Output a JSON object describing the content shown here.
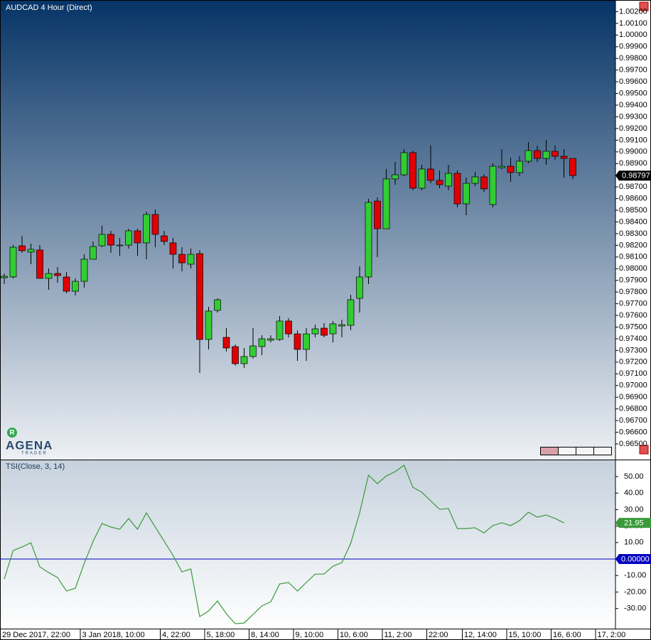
{
  "logo": {
    "badge": "R",
    "name": "AGENA",
    "tagline": "TRADER"
  },
  "chart_data": [
    {
      "type": "candlestick",
      "title": "AUDCAD 4 Hour (Direct)",
      "up_color": "#33cc33",
      "down_color": "#e00000",
      "wick_color": "#000000",
      "ylim": [
        0.96366,
        1.003
      ],
      "yticks": [
        {
          "value": 1.002,
          "label": "1.00200"
        },
        {
          "value": 1.001,
          "label": "1.00100"
        },
        {
          "value": 1.0,
          "label": "1.00000"
        },
        {
          "value": 0.999,
          "label": "0.99900"
        },
        {
          "value": 0.998,
          "label": "0.99800"
        },
        {
          "value": 0.997,
          "label": "0.99700"
        },
        {
          "value": 0.996,
          "label": "0.99600"
        },
        {
          "value": 0.995,
          "label": "0.99500"
        },
        {
          "value": 0.994,
          "label": "0.99400"
        },
        {
          "value": 0.993,
          "label": "0.99300"
        },
        {
          "value": 0.992,
          "label": "0.99200"
        },
        {
          "value": 0.991,
          "label": "0.99100"
        },
        {
          "value": 0.99,
          "label": "0.99000"
        },
        {
          "value": 0.989,
          "label": "0.98900"
        },
        {
          "value": 0.988,
          "label": "0.98800"
        },
        {
          "value": 0.987,
          "label": "0.98700"
        },
        {
          "value": 0.986,
          "label": "0.98600"
        },
        {
          "value": 0.985,
          "label": "0.98500"
        },
        {
          "value": 0.984,
          "label": "0.98400"
        },
        {
          "value": 0.983,
          "label": "0.98300"
        },
        {
          "value": 0.982,
          "label": "0.98200"
        },
        {
          "value": 0.981,
          "label": "0.98100"
        },
        {
          "value": 0.98,
          "label": "0.98000"
        },
        {
          "value": 0.979,
          "label": "0.97900"
        },
        {
          "value": 0.978,
          "label": "0.97800"
        },
        {
          "value": 0.977,
          "label": "0.97700"
        },
        {
          "value": 0.976,
          "label": "0.97600"
        },
        {
          "value": 0.975,
          "label": "0.97500"
        },
        {
          "value": 0.974,
          "label": "0.97400"
        },
        {
          "value": 0.973,
          "label": "0.97300"
        },
        {
          "value": 0.972,
          "label": "0.97200"
        },
        {
          "value": 0.971,
          "label": "0.97100"
        },
        {
          "value": 0.97,
          "label": "0.97000"
        },
        {
          "value": 0.969,
          "label": "0.96900"
        },
        {
          "value": 0.968,
          "label": "0.96800"
        },
        {
          "value": 0.967,
          "label": "0.96700"
        },
        {
          "value": 0.966,
          "label": "0.96600"
        },
        {
          "value": 0.965,
          "label": "0.96500"
        }
      ],
      "categories": [
        "29 Dec 2017, 22:00",
        null,
        null,
        null,
        null,
        null,
        null,
        null,
        null,
        "3 Jan 2018, 10:00",
        null,
        null,
        null,
        null,
        null,
        null,
        null,
        null,
        "4, 22:00",
        null,
        null,
        null,
        null,
        "5, 18:00",
        null,
        null,
        null,
        null,
        "8, 14:00",
        null,
        null,
        null,
        null,
        "9, 10:00",
        null,
        null,
        null,
        null,
        "10, 6:00",
        null,
        null,
        null,
        null,
        "11, 2:00",
        null,
        null,
        null,
        null,
        "22:00",
        null,
        null,
        null,
        "12, 14:00",
        null,
        null,
        null,
        null,
        "15, 10:00",
        null,
        null,
        null,
        null,
        "16, 6:00",
        null,
        null,
        null,
        null,
        "17, 2:00",
        null
      ],
      "open": [
        0.97923,
        0.97929,
        0.98196,
        0.98142,
        0.9816,
        0.97917,
        0.97959,
        0.97929,
        0.97807,
        0.97892,
        0.98081,
        0.98196,
        0.98294,
        0.98196,
        0.98202,
        0.98324,
        0.98221,
        0.98464,
        0.98281,
        0.98221,
        0.98123,
        0.98038,
        0.98129,
        0.97394,
        0.97643,
        0.97412,
        0.97333,
        0.97187,
        0.97248,
        0.97333,
        0.97388,
        0.97394,
        0.97552,
        0.97442,
        0.97309,
        0.97442,
        0.97491,
        0.97442,
        0.97509,
        0.97515,
        0.97746,
        0.97929,
        0.98579,
        0.98342,
        0.98768,
        0.98804,
        0.98993,
        0.98689,
        0.98853,
        0.98756,
        0.98707,
        0.98816,
        0.98555,
        0.98731,
        0.98786,
        0.98549,
        0.98865,
        0.98877,
        0.98823,
        0.9892,
        0.99011,
        0.98944,
        0.99005,
        0.98962,
        0.98944,
        null,
        null,
        null,
        null
      ],
      "high": [
        0.97959,
        0.98202,
        0.98281,
        0.98215,
        0.98202,
        0.98002,
        0.98014,
        0.97971,
        0.97917,
        0.98123,
        0.98233,
        0.98367,
        0.98324,
        0.98263,
        0.98342,
        0.98342,
        0.98488,
        0.98506,
        0.98324,
        0.98263,
        0.98184,
        0.98172,
        0.9816,
        0.97673,
        0.97746,
        0.97491,
        0.97351,
        0.97321,
        0.97491,
        0.9743,
        0.9743,
        0.97594,
        0.97576,
        0.97473,
        0.97491,
        0.97521,
        0.97534,
        0.97552,
        0.97564,
        0.97777,
        0.9802,
        0.98598,
        0.9861,
        0.98853,
        0.98914,
        0.99023,
        0.99011,
        0.98889,
        0.99054,
        0.98841,
        0.98889,
        0.98841,
        0.9878,
        0.98829,
        0.9881,
        0.98902,
        0.99023,
        0.9895,
        0.98962,
        0.99084,
        0.99054,
        0.99102,
        0.99054,
        0.99023,
        0.98944,
        null,
        null,
        null,
        null
      ],
      "low": [
        0.97868,
        0.97917,
        0.98136,
        0.98038,
        0.97917,
        0.97819,
        0.9788,
        0.97789,
        0.97771,
        0.97838,
        0.98081,
        0.98184,
        0.98136,
        0.98111,
        0.98172,
        0.98111,
        0.98081,
        0.98184,
        0.98202,
        0.98002,
        0.97977,
        0.98002,
        0.97108,
        0.97309,
        0.97625,
        0.9729,
        0.97169,
        0.97151,
        0.9723,
        0.9726,
        0.97369,
        0.97382,
        0.97412,
        0.97211,
        0.97211,
        0.97412,
        0.97412,
        0.97369,
        0.97412,
        0.97473,
        0.97625,
        0.97868,
        0.98099,
        0.98342,
        0.98719,
        0.98792,
        0.98671,
        0.98671,
        0.98731,
        0.98689,
        0.98671,
        0.98525,
        0.98458,
        0.98707,
        0.98658,
        0.98525,
        0.98853,
        0.98744,
        0.98792,
        0.98902,
        0.98914,
        0.98889,
        0.98932,
        0.9878,
        0.98768,
        null,
        null,
        null,
        null
      ],
      "close": [
        0.97935,
        0.98184,
        0.98154,
        0.98166,
        0.97917,
        0.97959,
        0.97941,
        0.97807,
        0.97892,
        0.98081,
        0.9819,
        0.98294,
        0.98202,
        0.98202,
        0.98324,
        0.98221,
        0.98464,
        0.98294,
        0.98233,
        0.98123,
        0.9805,
        0.98123,
        0.97394,
        0.97637,
        0.97734,
        0.97321,
        0.97187,
        0.97248,
        0.97339,
        0.974,
        0.974,
        0.97552,
        0.97442,
        0.97309,
        0.97442,
        0.97485,
        0.9743,
        0.97528,
        0.97521,
        0.97734,
        0.97929,
        0.98567,
        0.98342,
        0.98768,
        0.98804,
        0.98993,
        0.98689,
        0.98853,
        0.98756,
        0.98719,
        0.98816,
        0.98555,
        0.98731,
        0.98786,
        0.98683,
        0.98877,
        0.98877,
        0.98823,
        0.9892,
        0.99011,
        0.98944,
        0.99005,
        0.98962,
        0.98944,
        0.98797,
        null,
        null,
        null,
        null
      ]
    },
    {
      "type": "line",
      "title": "TSI(Close, 3, 14)",
      "color": "#3a9a3a",
      "ylim": [
        -42.2,
        59.9
      ],
      "yticks": [
        {
          "value": 50,
          "label": "50.00"
        },
        {
          "value": 40,
          "label": "40.00"
        },
        {
          "value": 30,
          "label": "30.00"
        },
        {
          "value": 20,
          "label": "20.00"
        },
        {
          "value": 10,
          "label": "10.00"
        },
        {
          "value": -10,
          "label": "-10.00"
        },
        {
          "value": -20,
          "label": "-20.00"
        },
        {
          "value": -30,
          "label": "-30.00"
        }
      ],
      "zero_line": {
        "value": 0,
        "label": "0.00000",
        "color": "#0000c0"
      },
      "values": [
        -12.1,
        5.2,
        7.3,
        9.9,
        -4.7,
        -8.2,
        -11.2,
        -19.4,
        -17.7,
        -2.6,
        10.8,
        21.6,
        19.4,
        18.1,
        24.6,
        18.1,
        28.0,
        19.4,
        10.8,
        2.2,
        -7.8,
        -6.0,
        -34.9,
        -31.5,
        -25.4,
        -33.2,
        -39.2,
        -38.8,
        -33.6,
        -28.4,
        -25.9,
        -15.1,
        -14.2,
        -19.4,
        -14.2,
        -9.1,
        -9.1,
        -4.3,
        -2.2,
        9.5,
        28.0,
        50.9,
        45.7,
        50.4,
        53.0,
        56.9,
        43.5,
        40.5,
        35.3,
        30.2,
        30.6,
        18.5,
        18.5,
        19.0,
        15.9,
        20.3,
        22.0,
        20.3,
        23.3,
        28.4,
        25.4,
        26.7,
        24.6,
        21.95,
        null,
        null,
        null,
        null,
        null
      ]
    }
  ]
}
